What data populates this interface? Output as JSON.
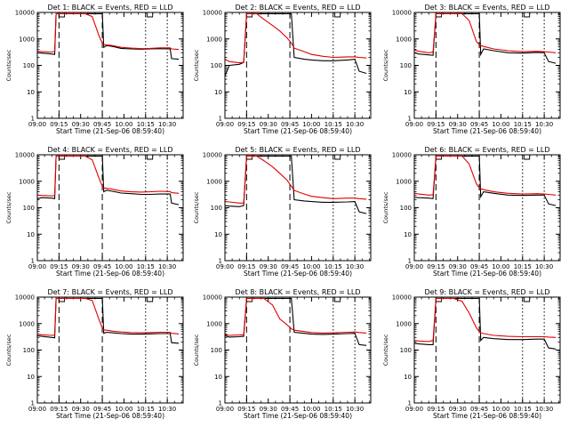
{
  "chart_data": {
    "type": "line",
    "layout": {
      "rows": 3,
      "cols": 3
    },
    "y_scale": "log",
    "ylim": [
      1,
      10000
    ],
    "y_ticks": [
      1,
      10,
      100,
      1000,
      10000
    ],
    "ylabel": "Counts/sec",
    "xlabel": "Start Time (21-Sep-06 08:59:40)",
    "x_ticks": [
      "09:00",
      "09:15",
      "09:30",
      "09:45",
      "10:00",
      "10:15",
      "10:30"
    ],
    "series_colors": {
      "events": "#000000",
      "lld": "#e00000"
    },
    "panels": [
      {
        "title": "Det 1: BLACK = Events, RED = LLD",
        "x": [
          "09:00",
          "09:03",
          "09:10",
          "09:12",
          "09:13",
          "09:16",
          "09:21",
          "09:27",
          "09:33",
          "09:38",
          "09:43",
          "09:45",
          "09:46",
          "09:48",
          "09:52",
          "09:58",
          "10:05",
          "10:12",
          "10:18",
          "10:25",
          "10:30",
          "10:32",
          "10:33",
          "10:38"
        ],
        "events": [
          300,
          290,
          270,
          260,
          9000,
          9000,
          9000,
          9000,
          9000,
          9000,
          9000,
          9000,
          480,
          560,
          520,
          440,
          420,
          410,
          420,
          430,
          420,
          420,
          180,
          170
        ],
        "lld": [
          350,
          330,
          320,
          340,
          9000,
          9000,
          9000,
          9000,
          9000,
          7000,
          1200,
          700,
          620,
          600,
          560,
          480,
          450,
          430,
          440,
          460,
          460,
          460,
          420,
          400
        ]
      },
      {
        "title": "Det 2: BLACK = Events, RED = LLD",
        "x": [
          "09:00",
          "09:03",
          "09:10",
          "09:13",
          "09:15",
          "09:18",
          "09:22",
          "09:27",
          "09:33",
          "09:38",
          "09:43",
          "09:46",
          "09:48",
          "09:55",
          "10:00",
          "10:08",
          "10:15",
          "10:25",
          "10:30",
          "10:33",
          "10:38"
        ],
        "events": [
          40,
          100,
          110,
          130,
          9000,
          9000,
          9000,
          9000,
          9000,
          9000,
          9000,
          9000,
          200,
          170,
          160,
          150,
          150,
          160,
          170,
          60,
          50
        ],
        "lld": [
          170,
          140,
          125,
          130,
          9000,
          9000,
          9000,
          5500,
          3200,
          2000,
          1100,
          700,
          450,
          330,
          260,
          220,
          200,
          210,
          210,
          200,
          190
        ]
      },
      {
        "title": "Det 3: BLACK = Events, RED = LLD",
        "x": [
          "09:00",
          "09:03",
          "09:10",
          "09:13",
          "09:15",
          "09:20",
          "09:27",
          "09:33",
          "09:38",
          "09:43",
          "09:45",
          "09:46",
          "09:48",
          "09:55",
          "10:05",
          "10:15",
          "10:25",
          "10:30",
          "10:33",
          "10:38"
        ],
        "events": [
          300,
          270,
          250,
          240,
          9000,
          9000,
          9000,
          9000,
          9000,
          9000,
          9000,
          260,
          420,
          360,
          300,
          290,
          310,
          300,
          140,
          120
        ],
        "lld": [
          380,
          340,
          300,
          320,
          9000,
          9000,
          9000,
          9000,
          5000,
          800,
          600,
          560,
          520,
          420,
          360,
          330,
          340,
          330,
          320,
          300
        ]
      },
      {
        "title": "Det 4: BLACK = Events, RED = LLD",
        "x": [
          "09:00",
          "09:03",
          "09:10",
          "09:12",
          "09:13",
          "09:16",
          "09:21",
          "09:27",
          "09:33",
          "09:38",
          "09:43",
          "09:45",
          "09:46",
          "09:48",
          "09:52",
          "09:58",
          "10:05",
          "10:12",
          "10:18",
          "10:25",
          "10:30",
          "10:32",
          "10:33",
          "10:38"
        ],
        "events": [
          220,
          240,
          230,
          220,
          9000,
          9000,
          9000,
          9000,
          9000,
          9000,
          9000,
          9000,
          400,
          460,
          420,
          360,
          340,
          320,
          320,
          330,
          330,
          330,
          150,
          130
        ],
        "lld": [
          300,
          290,
          280,
          290,
          9000,
          9000,
          9000,
          9000,
          9000,
          6500,
          1200,
          650,
          560,
          540,
          500,
          430,
          400,
          390,
          400,
          420,
          410,
          410,
          370,
          350
        ]
      },
      {
        "title": "Det 5: BLACK = Events, RED = LLD",
        "x": [
          "09:00",
          "09:03",
          "09:10",
          "09:13",
          "09:15",
          "09:18",
          "09:22",
          "09:27",
          "09:33",
          "09:38",
          "09:43",
          "09:46",
          "09:48",
          "09:55",
          "10:00",
          "10:08",
          "10:15",
          "10:25",
          "10:30",
          "10:33",
          "10:38"
        ],
        "events": [
          120,
          115,
          110,
          120,
          9000,
          9000,
          9000,
          9000,
          9000,
          9000,
          9000,
          9000,
          200,
          180,
          170,
          160,
          160,
          165,
          170,
          70,
          60
        ],
        "lld": [
          170,
          165,
          150,
          150,
          9000,
          9000,
          9000,
          6000,
          3500,
          2000,
          1100,
          650,
          450,
          330,
          270,
          240,
          220,
          230,
          230,
          220,
          210
        ]
      },
      {
        "title": "Det 6: BLACK = Events, RED = LLD",
        "x": [
          "09:00",
          "09:03",
          "09:10",
          "09:13",
          "09:15",
          "09:20",
          "09:27",
          "09:33",
          "09:38",
          "09:43",
          "09:45",
          "09:46",
          "09:48",
          "09:55",
          "10:05",
          "10:15",
          "10:25",
          "10:30",
          "10:33",
          "10:38"
        ],
        "events": [
          250,
          240,
          230,
          220,
          9000,
          9000,
          9000,
          9000,
          9000,
          9000,
          9000,
          260,
          400,
          350,
          300,
          290,
          300,
          300,
          140,
          120
        ],
        "lld": [
          360,
          330,
          300,
          310,
          9000,
          9000,
          9000,
          9000,
          4500,
          800,
          560,
          520,
          480,
          400,
          350,
          330,
          340,
          330,
          320,
          300
        ]
      },
      {
        "title": "Det 7: BLACK = Events, RED = LLD",
        "x": [
          "09:00",
          "09:03",
          "09:10",
          "09:12",
          "09:13",
          "09:16",
          "09:21",
          "09:27",
          "09:33",
          "09:38",
          "09:43",
          "09:45",
          "09:46",
          "09:48",
          "09:52",
          "09:58",
          "10:05",
          "10:12",
          "10:18",
          "10:25",
          "10:30",
          "10:32",
          "10:33",
          "10:38"
        ],
        "events": [
          350,
          330,
          300,
          290,
          9000,
          9000,
          9000,
          9000,
          9000,
          9000,
          9000,
          9000,
          430,
          470,
          450,
          420,
          400,
          400,
          410,
          420,
          420,
          420,
          190,
          180
        ],
        "lld": [
          400,
          380,
          360,
          370,
          9000,
          9000,
          9000,
          9000,
          9000,
          7500,
          1300,
          680,
          580,
          560,
          520,
          480,
          460,
          450,
          460,
          470,
          470,
          470,
          430,
          410
        ]
      },
      {
        "title": "Det 8: BLACK = Events, RED = LLD",
        "x": [
          "09:00",
          "09:03",
          "09:10",
          "09:13",
          "09:15",
          "09:18",
          "09:22",
          "09:27",
          "09:33",
          "09:38",
          "09:43",
          "09:46",
          "09:48",
          "09:55",
          "10:00",
          "10:08",
          "10:15",
          "10:25",
          "10:30",
          "10:33",
          "10:38"
        ],
        "events": [
          350,
          310,
          320,
          330,
          9000,
          9000,
          9000,
          9000,
          9000,
          9000,
          9000,
          9000,
          470,
          430,
          400,
          390,
          400,
          420,
          430,
          160,
          150
        ],
        "lld": [
          380,
          360,
          370,
          380,
          9000,
          9000,
          9000,
          9000,
          5000,
          1500,
          900,
          640,
          560,
          500,
          460,
          440,
          450,
          470,
          480,
          460,
          440
        ]
      },
      {
        "title": "Det 9: BLACK = Events, RED = LLD",
        "x": [
          "09:00",
          "09:03",
          "09:10",
          "09:13",
          "09:15",
          "09:20",
          "09:27",
          "09:33",
          "09:38",
          "09:43",
          "09:45",
          "09:46",
          "09:48",
          "09:55",
          "10:05",
          "10:15",
          "10:25",
          "10:30",
          "10:33",
          "10:38"
        ],
        "events": [
          180,
          170,
          160,
          160,
          9000,
          9000,
          9000,
          9000,
          9000,
          9000,
          9000,
          230,
          300,
          270,
          250,
          250,
          260,
          260,
          120,
          110
        ],
        "lld": [
          230,
          220,
          210,
          230,
          9000,
          9000,
          9000,
          7000,
          2500,
          700,
          500,
          450,
          420,
          360,
          330,
          320,
          320,
          320,
          310,
          300
        ]
      }
    ]
  }
}
